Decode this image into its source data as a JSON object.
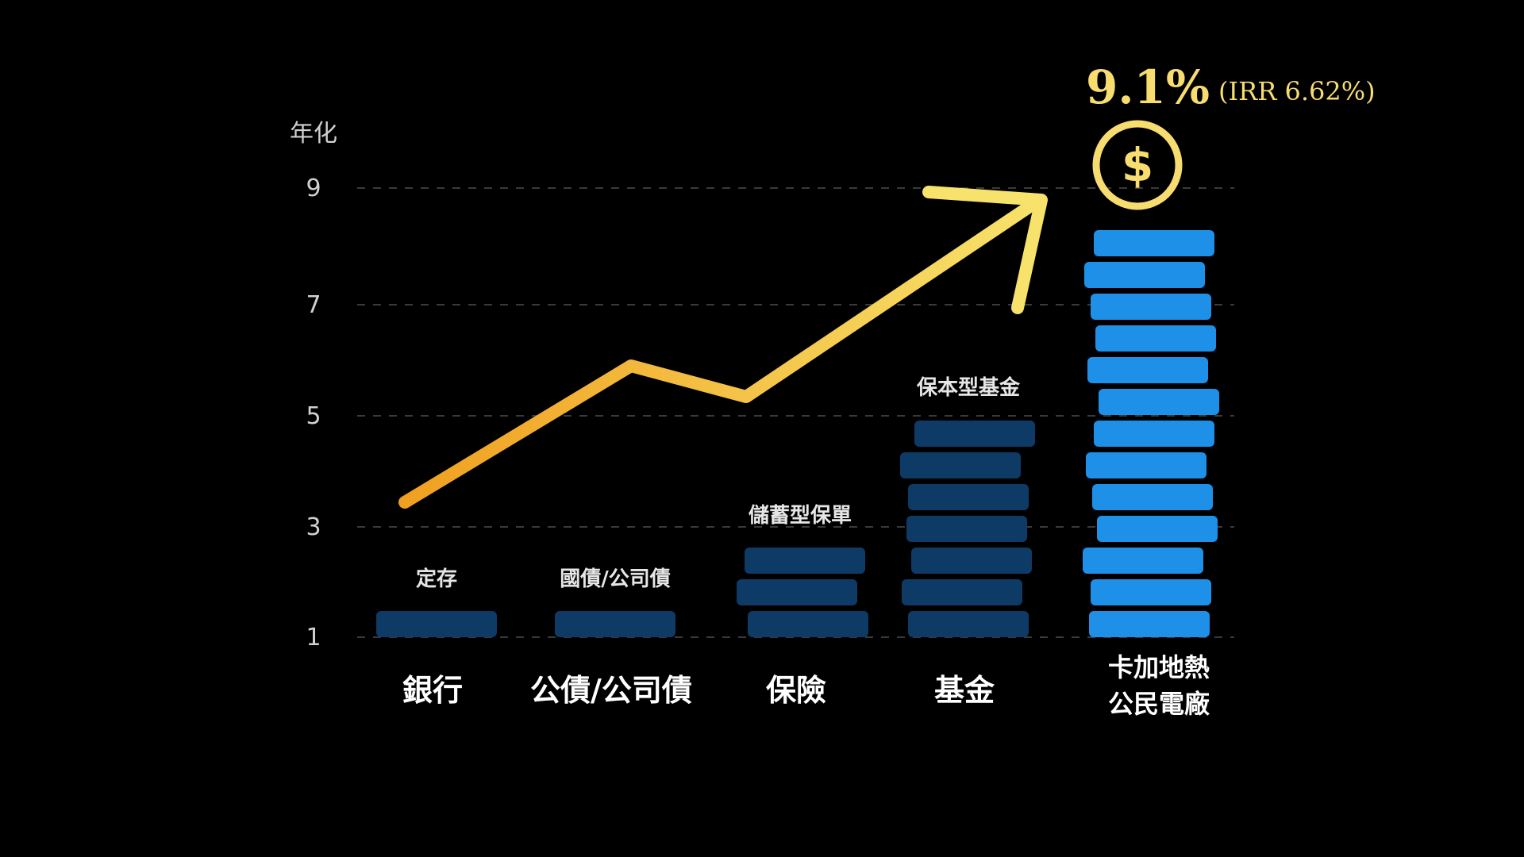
{
  "chart_data": {
    "type": "bar",
    "ylabel": "年化",
    "yticks": [
      1,
      3,
      5,
      7,
      9
    ],
    "ylim": [
      0.8,
      9.2
    ],
    "grid": true,
    "categories": [
      "銀行",
      "公債/公司債",
      "保險",
      "基金",
      "卡加地熱\n公民電廠"
    ],
    "sublabels": [
      "定存",
      "國債/公司債",
      "儲蓄型保單",
      "保本型基金",
      ""
    ],
    "values": [
      1,
      1,
      3,
      5,
      9.1
    ],
    "trend_values": [
      3.4,
      6.0,
      5.4,
      9.0
    ],
    "highlight": {
      "value_text": "9.1%",
      "note": "(IRR 6.62%)",
      "icon": "dollar-coin-icon"
    },
    "colors": {
      "bar_dark": "#0e3a66",
      "bar_highlight": "#1e90e8",
      "trend_start": "#f0a020",
      "trend_end": "#f7e26b",
      "coin": "#f7dc6f",
      "grid": "#3a3a3a"
    }
  }
}
